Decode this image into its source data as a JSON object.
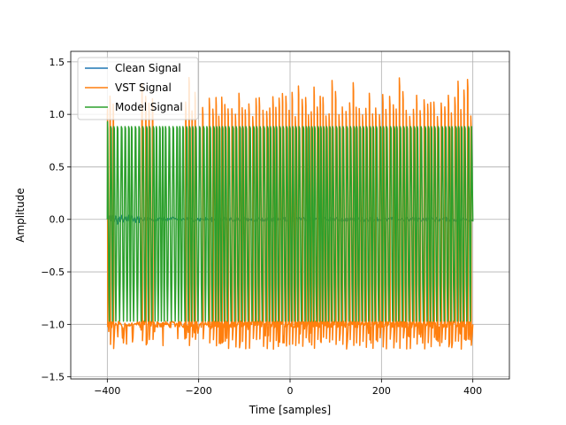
{
  "chart_data": {
    "type": "line",
    "title": "",
    "xlabel": "Time [samples]",
    "ylabel": "Amplitude",
    "xlim": [
      -480,
      480
    ],
    "ylim": [
      -1.52,
      1.6
    ],
    "grid": true,
    "legend_position": "top-left",
    "xticks": [
      -400,
      -200,
      0,
      200,
      400
    ],
    "yticks": [
      -1.5,
      -1.0,
      -0.5,
      0.0,
      0.5,
      1.0,
      1.5
    ],
    "xtick_labels": [
      "−400",
      "−200",
      "0",
      "200",
      "400"
    ],
    "ytick_labels": [
      "−1.5",
      "−1.0",
      "−0.5",
      "0.0",
      "0.5",
      "1.0",
      "1.5"
    ],
    "series": [
      {
        "name": "Clean Signal",
        "color": "#1f77b4",
        "style": "small noise around zero",
        "x": [
          -400,
          400
        ],
        "y_approx": [
          0.0,
          0.0
        ],
        "amplitude_approx": 0.04
      },
      {
        "name": "VST Signal",
        "color": "#ff7f0e",
        "style": "square-wave-like oscillation",
        "x": [
          -400,
          400
        ],
        "y_low_approx": -1.0,
        "y_high_approx": 1.1,
        "peak_max_approx": 1.35,
        "trough_min_approx": -1.27
      },
      {
        "name": "Model Signal",
        "color": "#2ca02c",
        "style": "oscillation",
        "x": [
          -400,
          400
        ],
        "y_low_approx": -0.97,
        "y_high_approx": 0.97
      }
    ]
  }
}
